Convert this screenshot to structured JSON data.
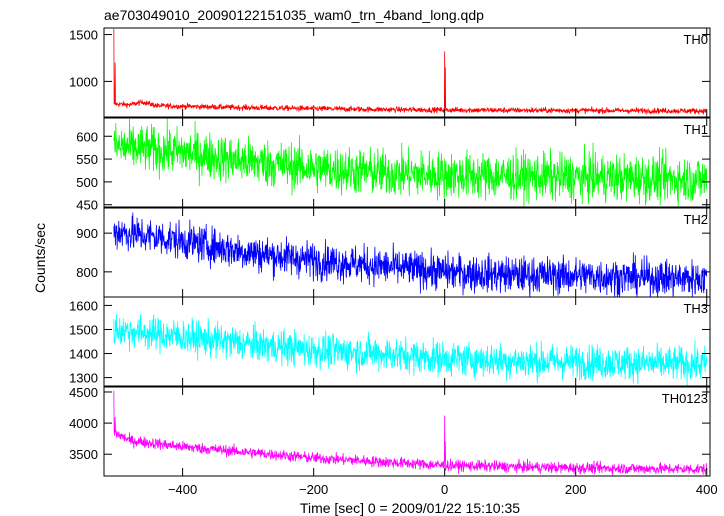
{
  "chart_data": {
    "type": "line",
    "title": "ae703049010_20090122151035_wam0_trn_4band_long.qdp",
    "xlabel": "Time [sec] 0 = 2009/01/22 15:10:35",
    "ylabel": "Counts/sec",
    "xlim": [
      -520,
      405
    ],
    "x_ticks": [
      -400,
      -200,
      0,
      200,
      400
    ],
    "x_tick_labels": [
      "−400",
      "−200",
      "0",
      "200",
      "400"
    ],
    "grid": false,
    "panels": [
      {
        "name": "TH0",
        "color": "#ff0000",
        "ylim": [
          620,
          1570
        ],
        "y_ticks": [
          1000,
          1500
        ],
        "y_tick_labels": [
          "1000",
          "1500"
        ],
        "baseline": [
          [
            -505,
            760
          ],
          [
            -480,
            750
          ],
          [
            -460,
            780
          ],
          [
            -440,
            740
          ],
          [
            -300,
            720
          ],
          [
            -100,
            700
          ],
          [
            0,
            695
          ],
          [
            200,
            690
          ],
          [
            400,
            685
          ]
        ],
        "noise": 15,
        "spikes": [
          {
            "x": -505,
            "y": 1560
          },
          {
            "x": -503,
            "y": 1200
          },
          {
            "x": 0,
            "y": 1320
          },
          {
            "x": 1,
            "y": 1150
          }
        ]
      },
      {
        "name": "TH1",
        "color": "#00ff00",
        "ylim": [
          445,
          640
        ],
        "y_ticks": [
          450,
          500,
          550,
          600
        ],
        "y_tick_labels": [
          "450",
          "500",
          "550",
          "600"
        ],
        "baseline": [
          [
            -505,
            578
          ],
          [
            -400,
            565
          ],
          [
            -300,
            545
          ],
          [
            -200,
            530
          ],
          [
            -100,
            520
          ],
          [
            0,
            515
          ],
          [
            100,
            512
          ],
          [
            200,
            510
          ],
          [
            300,
            508
          ],
          [
            400,
            505
          ]
        ],
        "noise": 26,
        "spikes": []
      },
      {
        "name": "TH2",
        "color": "#0000ff",
        "ylim": [
          735,
          965
        ],
        "y_ticks": [
          800,
          900
        ],
        "y_tick_labels": [
          "800",
          "900"
        ],
        "baseline": [
          [
            -505,
            905
          ],
          [
            -400,
            880
          ],
          [
            -300,
            850
          ],
          [
            -200,
            830
          ],
          [
            -100,
            815
          ],
          [
            0,
            800
          ],
          [
            100,
            792
          ],
          [
            200,
            790
          ],
          [
            300,
            785
          ],
          [
            400,
            782
          ]
        ],
        "noise": 24,
        "spikes": []
      },
      {
        "name": "TH3",
        "color": "#00ffff",
        "ylim": [
          1265,
          1635
        ],
        "y_ticks": [
          1300,
          1400,
          1500,
          1600
        ],
        "y_tick_labels": [
          "1300",
          "1400",
          "1500",
          "1600"
        ],
        "baseline": [
          [
            -505,
            1500
          ],
          [
            -400,
            1470
          ],
          [
            -300,
            1440
          ],
          [
            -200,
            1415
          ],
          [
            -100,
            1400
          ],
          [
            0,
            1380
          ],
          [
            100,
            1370
          ],
          [
            200,
            1365
          ],
          [
            300,
            1360
          ],
          [
            400,
            1355
          ]
        ],
        "noise": 36,
        "spikes": []
      },
      {
        "name": "TH0123",
        "color": "#ff00ff",
        "ylim": [
          3150,
          4580
        ],
        "y_ticks": [
          3500,
          4000,
          4500
        ],
        "y_tick_labels": [
          "3500",
          "4000",
          "4500"
        ],
        "baseline": [
          [
            -505,
            3850
          ],
          [
            -480,
            3720
          ],
          [
            -400,
            3620
          ],
          [
            -300,
            3530
          ],
          [
            -200,
            3440
          ],
          [
            -100,
            3380
          ],
          [
            0,
            3320
          ],
          [
            100,
            3300
          ],
          [
            200,
            3280
          ],
          [
            300,
            3270
          ],
          [
            400,
            3260
          ]
        ],
        "noise": 45,
        "spikes": [
          {
            "x": -505,
            "y": 4520
          },
          {
            "x": -503,
            "y": 4100
          },
          {
            "x": 0,
            "y": 4120
          },
          {
            "x": 1,
            "y": 3700
          }
        ]
      }
    ]
  }
}
